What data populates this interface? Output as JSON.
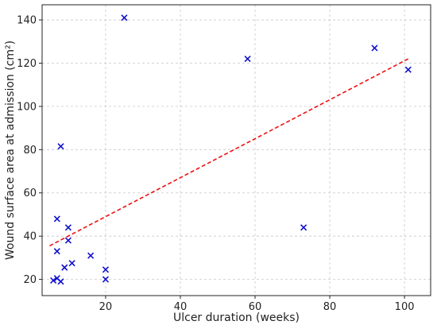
{
  "chart_data": {
    "type": "scatter",
    "title": "",
    "xlabel": "Ulcer duration (weeks)",
    "ylabel": "Wound surface area at admission (cm²)",
    "xlim": [
      3,
      107
    ],
    "ylim": [
      12.5,
      147
    ],
    "xticks": [
      20,
      40,
      60,
      80,
      100
    ],
    "yticks": [
      20,
      40,
      60,
      80,
      100,
      120,
      140
    ],
    "grid": true,
    "marker": "x",
    "colors": {
      "points": "#1010cc",
      "fit_line": "#ee1111"
    },
    "series": [
      {
        "points": [
          {
            "x": 25,
            "y": 141
          },
          {
            "x": 58,
            "y": 122
          },
          {
            "x": 92,
            "y": 127
          },
          {
            "x": 101,
            "y": 117
          },
          {
            "x": 8,
            "y": 81.5
          },
          {
            "x": 73,
            "y": 44
          },
          {
            "x": 7,
            "y": 48
          },
          {
            "x": 10,
            "y": 44
          },
          {
            "x": 10,
            "y": 38
          },
          {
            "x": 7,
            "y": 33
          },
          {
            "x": 16,
            "y": 31
          },
          {
            "x": 11,
            "y": 27.5
          },
          {
            "x": 9,
            "y": 25.5
          },
          {
            "x": 20,
            "y": 24.5
          },
          {
            "x": 20,
            "y": 20
          },
          {
            "x": 7,
            "y": 20.5
          },
          {
            "x": 6,
            "y": 19.5
          },
          {
            "x": 8,
            "y": 19
          }
        ]
      }
    ],
    "fit_line": {
      "style": "dashed",
      "x1": 5,
      "y1": 35.5,
      "x2": 101,
      "y2": 122
    }
  }
}
